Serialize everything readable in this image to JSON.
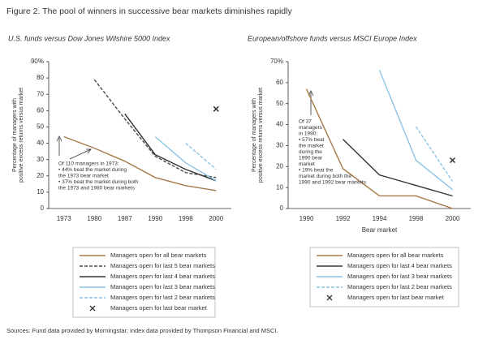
{
  "title": "Figure 2. The pool of winners in successive bear markets diminishes rapidly",
  "source": "Sources: Fund data provided by Morningstar; index data provided by Thompson Financial and MSCI.",
  "chart_data": [
    {
      "type": "line",
      "title": "U.S. funds versus Dow Jones Wilshire 5000 Index",
      "ylabel": [
        "Percentage of managers with",
        "positive excess returns versus market"
      ],
      "categories": [
        "1973",
        "1980",
        "1987",
        "1990",
        "1998",
        "2000"
      ],
      "ylim": [
        0,
        90
      ],
      "yticks": [
        0,
        10,
        20,
        30,
        40,
        50,
        60,
        70,
        80,
        {
          "value": 90,
          "label": "90%"
        }
      ],
      "annotation": [
        "Of 110 managers in 1973:",
        "• 44% beat the market during",
        "the 1973 bear market",
        "• 37% beat the market during both",
        "the 1973 and 1980 bear markets"
      ],
      "series": [
        {
          "name": "Managers open for all bear markets",
          "color": "#a57a4a",
          "style": "solid",
          "values": [
            44,
            37,
            29,
            19,
            14,
            11
          ]
        },
        {
          "name": "Managers open for last 5 bear markets",
          "color": "#4a4a4a",
          "style": "dashed",
          "values": [
            null,
            79,
            55,
            32,
            22,
            19
          ]
        },
        {
          "name": "Managers open for last 4 bear markets",
          "color": "#333333",
          "style": "solid",
          "values": [
            null,
            null,
            58,
            33,
            24,
            17
          ]
        },
        {
          "name": "Managers open for last 3 bear markets",
          "color": "#8cc4e6",
          "style": "solid",
          "values": [
            null,
            null,
            null,
            44,
            28,
            17
          ]
        },
        {
          "name": "Managers open for last 2 bear markets",
          "color": "#8cc4e6",
          "style": "dashed",
          "values": [
            null,
            null,
            null,
            null,
            40,
            24
          ]
        },
        {
          "name": "Managers open for last bear market",
          "color": "#333333",
          "style": "x",
          "values": [
            null,
            null,
            null,
            null,
            null,
            61
          ]
        }
      ]
    },
    {
      "type": "line",
      "title": "European/offshore funds versus MSCI Europe Index",
      "ylabel": [
        "Percentage of managers with",
        "positive excess returns versus market"
      ],
      "xlabel": "Bear market",
      "categories": [
        "1990",
        "1992",
        "1994",
        "1998",
        "2000"
      ],
      "ylim": [
        0,
        70
      ],
      "yticks": [
        0,
        10,
        20,
        30,
        40,
        50,
        60,
        {
          "value": 70,
          "label": "70%"
        }
      ],
      "annotation": [
        "Of 37",
        "managers",
        "in 1990:",
        "• 57% beat",
        "the market",
        "during the",
        "1990 bear",
        "market",
        "• 19% beat the",
        "market during both the",
        "1990 and 1992 bear markets"
      ],
      "series": [
        {
          "name": "Managers open for all bear markets",
          "color": "#a57a4a",
          "style": "solid",
          "values": [
            57,
            19,
            6,
            6,
            0
          ]
        },
        {
          "name": "Managers open for last 4 bear markets",
          "color": "#333333",
          "style": "solid",
          "values": [
            null,
            33,
            16,
            11,
            6
          ]
        },
        {
          "name": "Managers open for last 3 bear markets",
          "color": "#8cc4e6",
          "style": "solid",
          "values": [
            null,
            null,
            66,
            23,
            9
          ]
        },
        {
          "name": "Managers open for last 2 bear markets",
          "color": "#8cc4e6",
          "style": "dashed",
          "values": [
            null,
            null,
            null,
            39,
            13
          ]
        },
        {
          "name": "Managers open for last bear market",
          "color": "#333333",
          "style": "x",
          "values": [
            null,
            null,
            null,
            null,
            23
          ]
        }
      ]
    }
  ]
}
